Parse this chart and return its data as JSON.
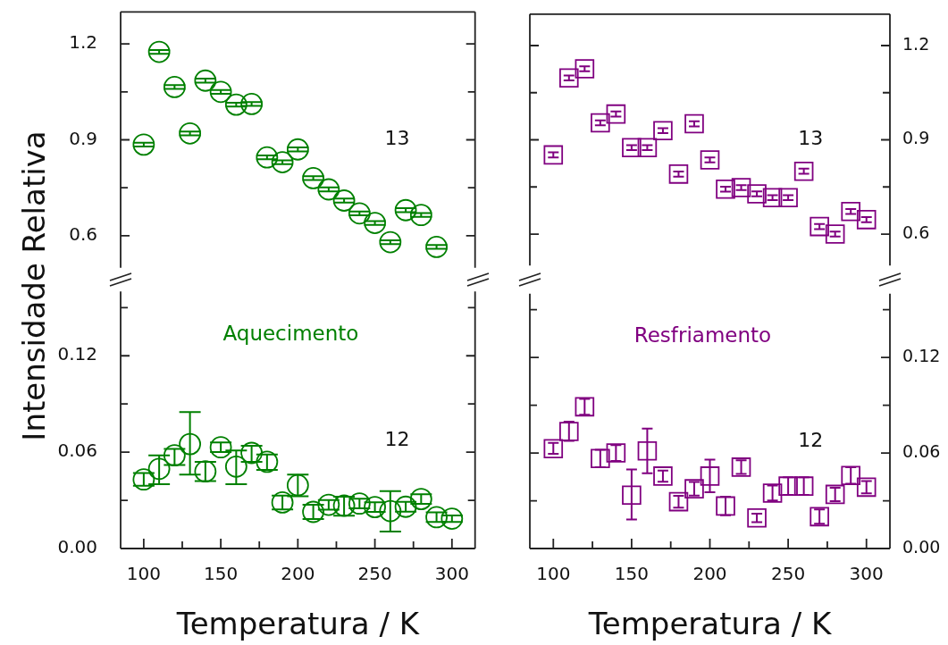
{
  "chart_data": [
    {
      "type": "scatter",
      "marker": "circle",
      "ylabel": "Intensidade Relativa",
      "tick_labels": "y",
      "xlim": [
        85,
        315
      ],
      "ylim": [
        0.5,
        1.3
      ],
      "yticks": [
        0.6,
        {
          "value": 0.75,
          "label": null
        },
        0.9,
        {
          "value": 1.05,
          "label": null
        },
        1.2
      ],
      "x": [
        100,
        110,
        120,
        130,
        140,
        150,
        160,
        170,
        180,
        190,
        200,
        210,
        220,
        230,
        240,
        250,
        260,
        270,
        280,
        290
      ],
      "series": [
        {
          "name": "13",
          "color": "#008000",
          "values": [
            0.885,
            1.175,
            1.065,
            0.92,
            1.085,
            1.05,
            1.01,
            1.012,
            0.845,
            0.83,
            0.87,
            0.78,
            0.745,
            0.71,
            0.67,
            0.64,
            0.58,
            0.68,
            0.665,
            0.565
          ],
          "errors": [
            0.006,
            0.006,
            0.006,
            0.006,
            0.006,
            0.006,
            0.006,
            0.006,
            0.006,
            0.006,
            0.006,
            0.006,
            0.006,
            0.006,
            0.006,
            0.006,
            0.006,
            0.006,
            0.006,
            0.006
          ]
        }
      ]
    },
    {
      "type": "scatter",
      "marker": "circle",
      "xlabel": "Temperatura / K",
      "annotations": [
        "Aquecimento"
      ],
      "xlim": [
        85,
        315
      ],
      "xticks": [
        100,
        {
          "value": 125,
          "label": null
        },
        150,
        {
          "value": 175,
          "label": null
        },
        200,
        {
          "value": 225,
          "label": null
        },
        250,
        {
          "value": 275,
          "label": null
        },
        300
      ],
      "ylim": [
        0,
        0.16
      ],
      "yticks": [
        {
          "value": 0,
          "label": "0.00"
        },
        {
          "value": 0.03,
          "label": null
        },
        0.06,
        {
          "value": 0.09,
          "label": null
        },
        0.12,
        {
          "value": 0.15,
          "label": null
        }
      ],
      "x": [
        100,
        110,
        120,
        130,
        140,
        150,
        160,
        170,
        180,
        190,
        200,
        210,
        220,
        230,
        240,
        250,
        260,
        270,
        280,
        290,
        300
      ],
      "series": [
        {
          "name": "12",
          "color": "#008000",
          "values": [
            0.043,
            0.0496,
            0.058,
            0.065,
            0.048,
            0.063,
            0.051,
            0.0595,
            0.054,
            0.0287,
            0.0394,
            0.0228,
            0.0272,
            0.0267,
            0.028,
            0.0258,
            0.0233,
            0.026,
            0.0308,
            0.0195,
            0.0186
          ],
          "errors": [
            0.004,
            [
              0.04,
              0.058
            ],
            [
              0.052,
              0.062
            ],
            [
              0.046,
              0.085
            ],
            [
              0.042,
              0.054
            ],
            0.003,
            [
              0.04,
              0.061
            ],
            [
              0.054,
              0.064
            ],
            [
              0.049,
              0.0585
            ],
            0.0043,
            [
              0.0326,
              0.046
            ],
            0.0045,
            0.003,
            [
              0.0204,
              0.0323
            ],
            0.003,
            0.003,
            [
              0.0106,
              0.0358
            ],
            0.003,
            0.003,
            0.003,
            0.002
          ]
        }
      ]
    },
    {
      "type": "scatter",
      "marker": "square",
      "tick_labels": "y",
      "xlim": [
        85,
        315
      ],
      "ylim": [
        0.5,
        1.3
      ],
      "yticks": [
        0.6,
        {
          "value": 0.75,
          "label": null
        },
        0.9,
        {
          "value": 1.05,
          "label": null
        },
        1.2
      ],
      "x": [
        100,
        110,
        120,
        130,
        140,
        150,
        160,
        170,
        180,
        190,
        200,
        210,
        220,
        230,
        240,
        250,
        260,
        270,
        280,
        290,
        300
      ],
      "series": [
        {
          "name": "13",
          "color": "#800080",
          "values": [
            0.852,
            1.097,
            1.126,
            0.954,
            0.982,
            0.875,
            0.875,
            0.929,
            0.791,
            0.951,
            0.836,
            0.743,
            0.748,
            0.728,
            0.716,
            0.716,
            0.8,
            0.624,
            0.6,
            0.672,
            0.646
          ],
          "errors": [
            0.008,
            0.008,
            0.008,
            0.008,
            0.008,
            0.008,
            0.008,
            0.008,
            0.008,
            0.008,
            0.008,
            0.008,
            0.008,
            0.008,
            0.008,
            0.008,
            0.008,
            0.008,
            0.008,
            0.008,
            0.008
          ]
        }
      ]
    },
    {
      "type": "scatter",
      "marker": "square",
      "xlabel": "Temperatura / K",
      "annotations": [
        "Resfriamento"
      ],
      "xlim": [
        85,
        315
      ],
      "xticks": [
        100,
        {
          "value": 125,
          "label": null
        },
        150,
        {
          "value": 175,
          "label": null
        },
        200,
        {
          "value": 225,
          "label": null
        },
        250,
        {
          "value": 275,
          "label": null
        },
        300
      ],
      "ylim": [
        0,
        0.16
      ],
      "yticks": [
        {
          "value": 0,
          "label": "0.00"
        },
        {
          "value": 0.03,
          "label": null
        },
        0.06,
        {
          "value": 0.09,
          "label": null
        },
        0.12,
        {
          "value": 0.15,
          "label": null
        }
      ],
      "x": [
        100,
        110,
        120,
        130,
        140,
        150,
        160,
        170,
        180,
        190,
        200,
        210,
        220,
        230,
        240,
        250,
        260,
        270,
        280,
        290,
        300
      ],
      "series": [
        {
          "name": "12",
          "color": "#800080",
          "values": [
            0.0627,
            0.0735,
            0.089,
            0.0565,
            0.06,
            0.0335,
            0.0613,
            0.0455,
            0.0294,
            0.0375,
            0.0455,
            0.0267,
            0.0511,
            0.0192,
            0.0348,
            0.0392,
            0.0392,
            0.02,
            0.034,
            0.0459,
            0.0385
          ],
          "errors": [
            [
              0.0595,
              0.0663
            ],
            [
              0.0676,
              0.0796
            ],
            0.005,
            0.0055,
            0.005,
            [
              0.0183,
              0.0496
            ],
            [
              0.0473,
              0.0753
            ],
            0.0035,
            0.0037,
            0.0043,
            [
              0.0353,
              0.0558
            ],
            0.0058,
            0.0043,
            0.0027,
            0.0047,
            0.0056,
            0.0056,
            0.0045,
            0.0042,
            0.0052,
            0.0038
          ]
        }
      ]
    }
  ]
}
